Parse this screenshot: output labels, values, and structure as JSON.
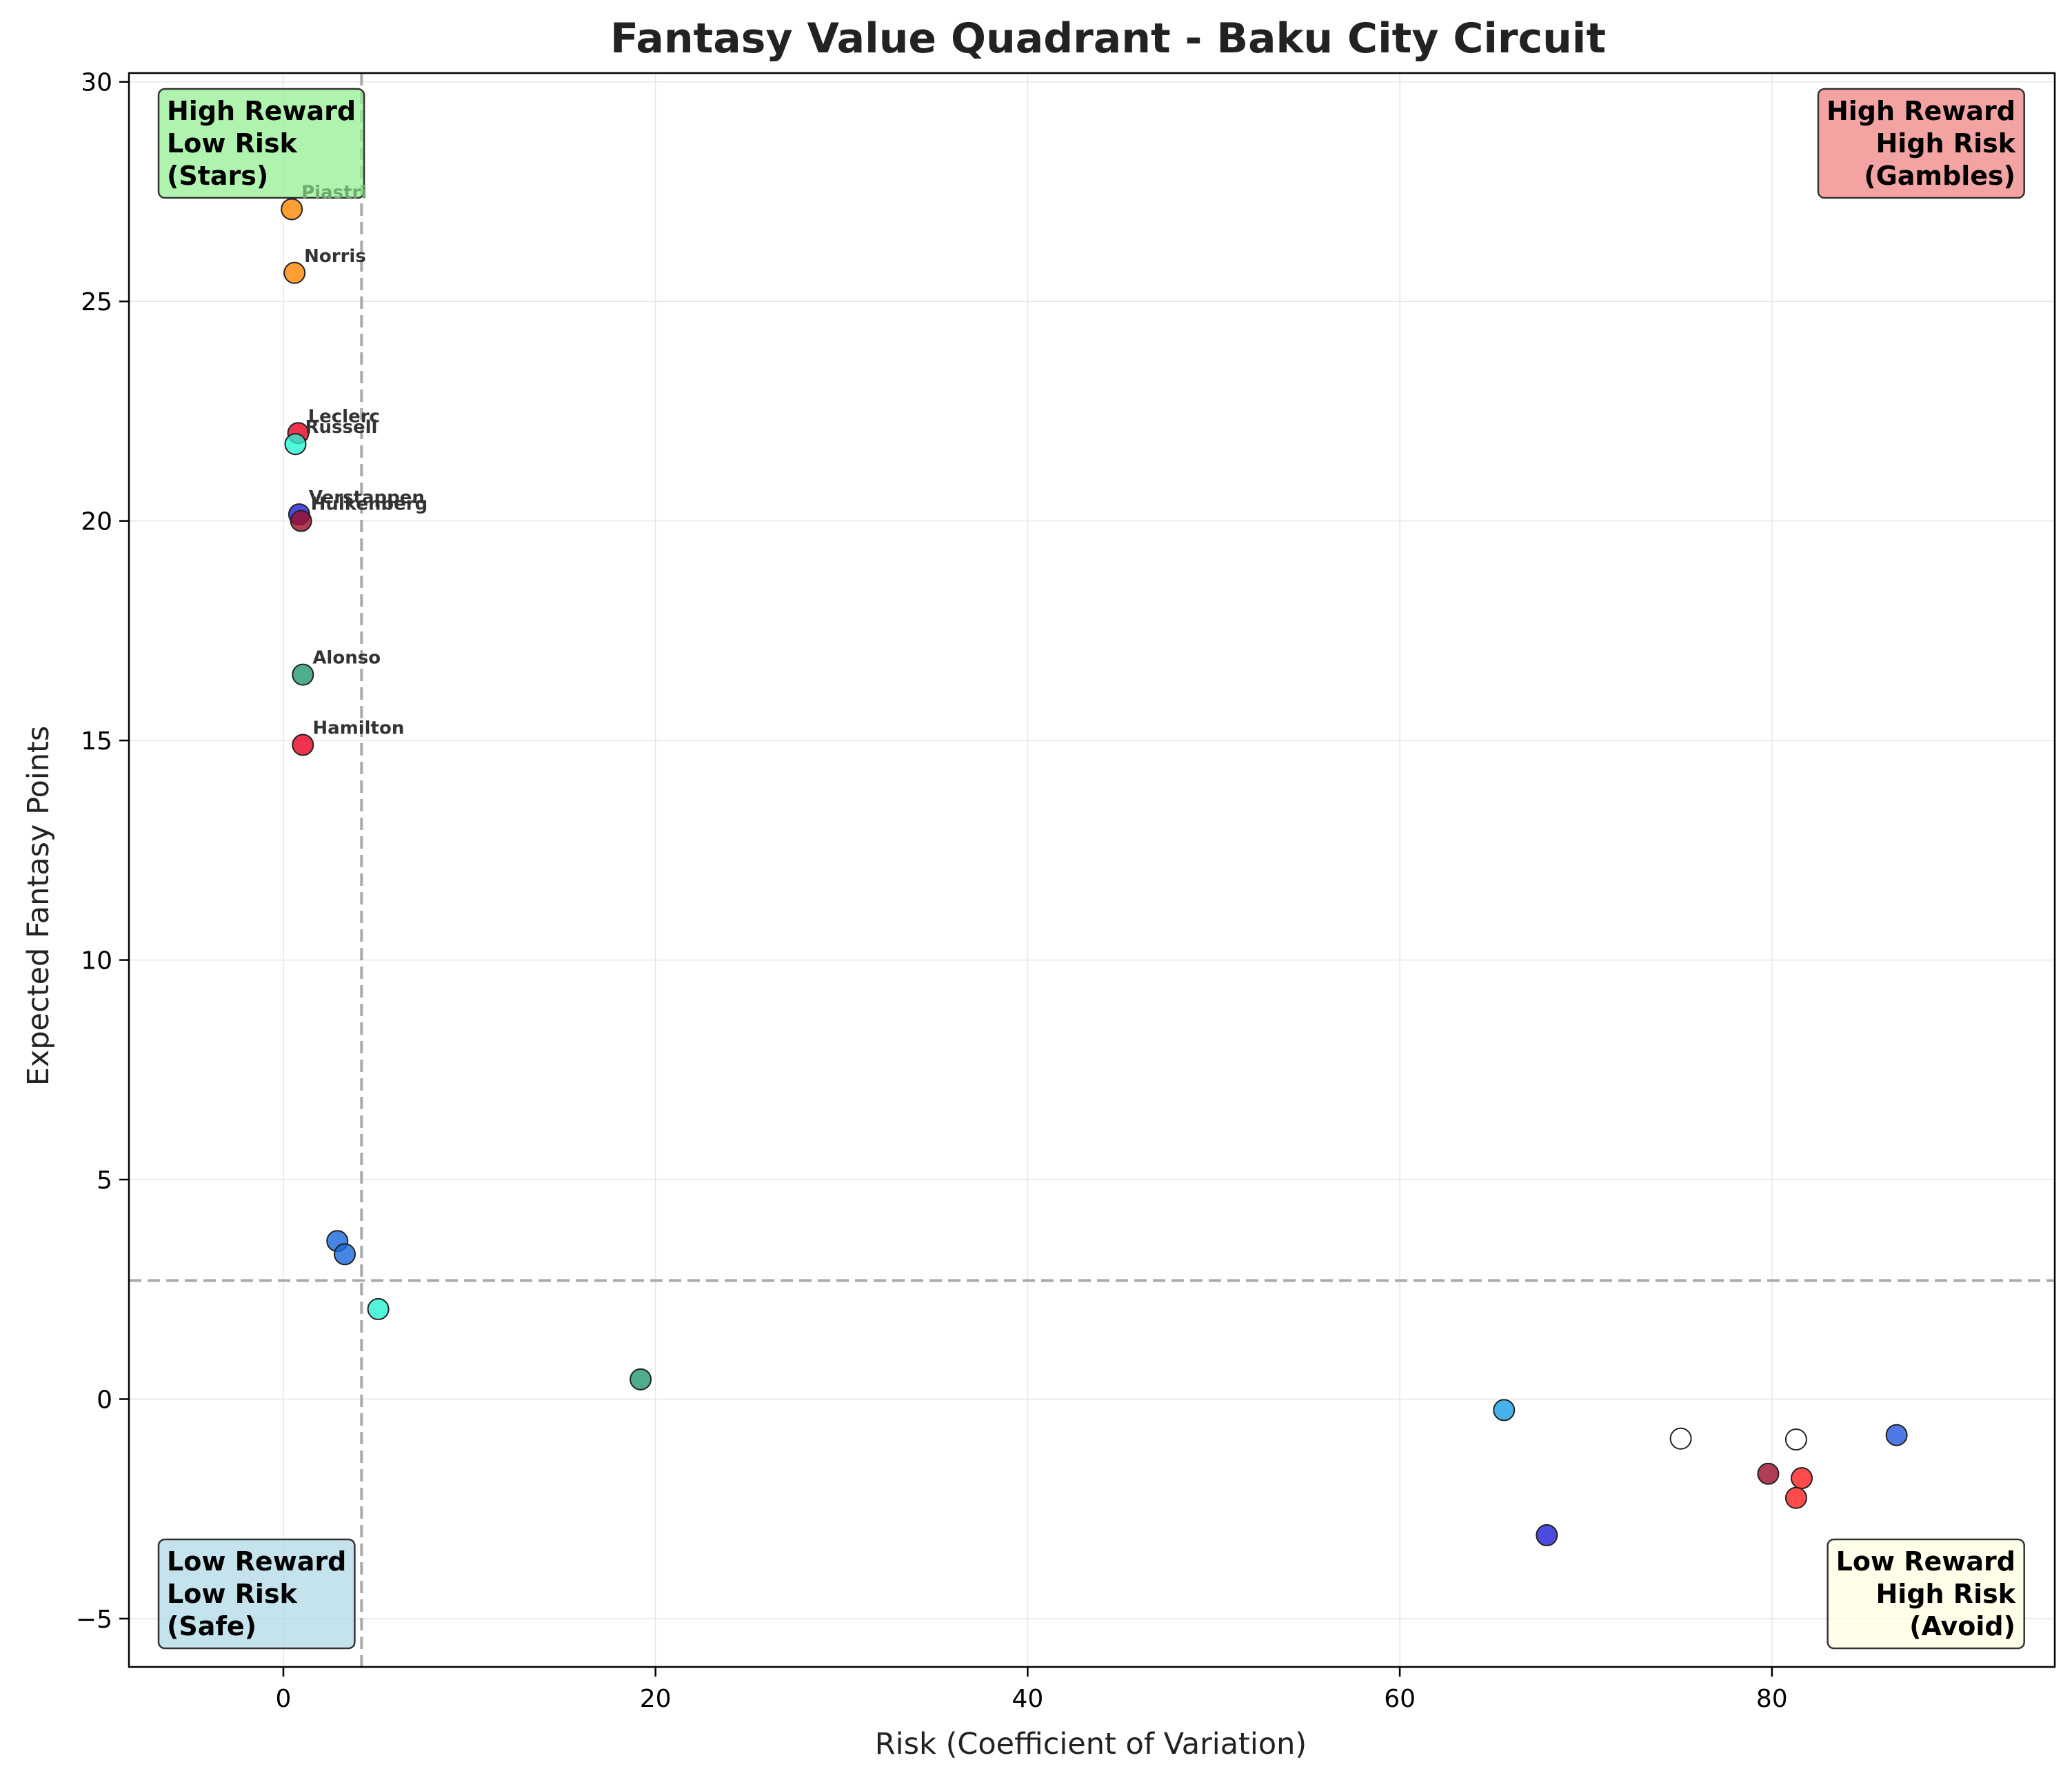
{
  "chart_data": {
    "type": "scatter",
    "title": "Fantasy Value Quadrant - Baku City Circuit",
    "xlabel": "Risk (Coefficient of Variation)",
    "ylabel": "Expected Fantasy Points",
    "xlim": [
      -8.3,
      95.2
    ],
    "ylim": [
      -6.1,
      30.2
    ],
    "x_ticks": [
      0,
      20,
      40,
      60,
      80
    ],
    "y_ticks": [
      -5,
      0,
      5,
      10,
      15,
      20,
      25,
      30
    ],
    "x_tick_labels": [
      "0",
      "20",
      "40",
      "60",
      "80"
    ],
    "y_tick_labels": [
      "−5",
      "0",
      "5",
      "10",
      "15",
      "20",
      "25",
      "30"
    ],
    "grid": true,
    "reference_lines": {
      "x": 4.2,
      "y": 2.7,
      "style": "dashed",
      "color": "#aaaaaa"
    },
    "quadrant_labels": [
      {
        "text": [
          "High Reward",
          "Low Risk",
          "(Stars)"
        ],
        "position": "top-left",
        "color": "#90ee90"
      },
      {
        "text": [
          "High Reward",
          "High Risk",
          "(Gambles)"
        ],
        "position": "top-right",
        "color": "#f08080"
      },
      {
        "text": [
          "Low Reward",
          "Low Risk",
          "(Safe)"
        ],
        "position": "bottom-left",
        "color": "#add8e6"
      },
      {
        "text": [
          "Low Reward",
          "High Risk",
          "(Avoid)"
        ],
        "position": "bottom-right",
        "color": "#ffffe0"
      }
    ],
    "points": [
      {
        "x": 0.45,
        "y": 27.1,
        "color": "#ff8700",
        "label": "Piastri",
        "label_color": "#6daa6d"
      },
      {
        "x": 0.6,
        "y": 25.65,
        "color": "#ff8700",
        "label": "Norris"
      },
      {
        "x": 0.8,
        "y": 22.0,
        "color": "#e80020",
        "label": "Leclerc"
      },
      {
        "x": 0.65,
        "y": 21.75,
        "color": "#27f4d2",
        "label": "Russell"
      },
      {
        "x": 0.85,
        "y": 20.15,
        "color": "#1e1ed8",
        "label": "Verstappen"
      },
      {
        "x": 0.95,
        "y": 20.0,
        "color": "#9b0e2a",
        "label": "Hulkenberg"
      },
      {
        "x": 1.05,
        "y": 16.5,
        "color": "#229971",
        "label": "Alonso"
      },
      {
        "x": 1.05,
        "y": 14.9,
        "color": "#e80020",
        "label": "Hamilton"
      },
      {
        "x": 2.9,
        "y": 3.6,
        "color": "#1868db",
        "label": ""
      },
      {
        "x": 3.3,
        "y": 3.3,
        "color": "#1868db",
        "label": ""
      },
      {
        "x": 5.1,
        "y": 2.05,
        "color": "#27f4d2",
        "label": ""
      },
      {
        "x": 19.2,
        "y": 0.45,
        "color": "#229971",
        "label": ""
      },
      {
        "x": 65.6,
        "y": -0.25,
        "color": "#1a9fe8",
        "label": ""
      },
      {
        "x": 67.9,
        "y": -3.1,
        "color": "#1e1ed8",
        "label": ""
      },
      {
        "x": 75.1,
        "y": -0.9,
        "color": "#ffffff",
        "label": ""
      },
      {
        "x": 79.8,
        "y": -1.7,
        "color": "#9b0e2a",
        "label": ""
      },
      {
        "x": 81.3,
        "y": -0.92,
        "color": "#ffffff",
        "label": ""
      },
      {
        "x": 81.6,
        "y": -1.8,
        "color": "#ff1e1e",
        "label": ""
      },
      {
        "x": 81.3,
        "y": -2.25,
        "color": "#ff1e1e",
        "label": ""
      },
      {
        "x": 86.7,
        "y": -0.82,
        "color": "#2457e0",
        "label": ""
      }
    ]
  }
}
